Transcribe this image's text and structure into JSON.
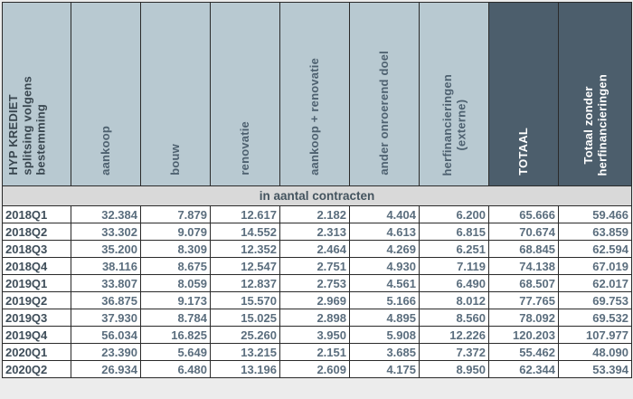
{
  "colors": {
    "header_light_bg": "#b8c9d1",
    "header_dark_bg": "#4c5e6c",
    "header_light_text": "#4e6170",
    "header_dark_text": "#ffffff",
    "subheader_bg": "#d9d9d9",
    "row_label_text": "#3e4d59",
    "number_text": "#5b6e7e",
    "grid_border": "#2a2a2a"
  },
  "chart_data": {
    "type": "table",
    "title": "HYP KREDIET splitsing volgens bestemming",
    "corner_header_lines": [
      "HYP KREDIET",
      "splitsing volgens",
      "bestemming"
    ],
    "subheader": "in aantal contracten",
    "columns": [
      {
        "label_lines": [
          "aankoop"
        ],
        "variant": "light"
      },
      {
        "label_lines": [
          "bouw"
        ],
        "variant": "light"
      },
      {
        "label_lines": [
          "renovatie"
        ],
        "variant": "light"
      },
      {
        "label_lines": [
          "aankoop + renovatie"
        ],
        "variant": "light"
      },
      {
        "label_lines": [
          "ander onroerend doel"
        ],
        "variant": "light"
      },
      {
        "label_lines": [
          "herfinancieringen",
          "(externe)"
        ],
        "variant": "light"
      },
      {
        "label_lines": [
          "TOTAAL"
        ],
        "variant": "dark"
      },
      {
        "label_lines": [
          "Totaal zonder",
          "herfinancieringen"
        ],
        "variant": "dark"
      }
    ],
    "rows": [
      {
        "period": "2018Q1",
        "values": [
          32384,
          7879,
          12617,
          2182,
          4404,
          6200,
          65666,
          59466
        ]
      },
      {
        "period": "2018Q2",
        "values": [
          33302,
          9079,
          14552,
          2313,
          4613,
          6815,
          70674,
          63859
        ]
      },
      {
        "period": "2018Q3",
        "values": [
          35200,
          8309,
          12352,
          2464,
          4269,
          6251,
          68845,
          62594
        ]
      },
      {
        "period": "2018Q4",
        "values": [
          38116,
          8675,
          12547,
          2751,
          4930,
          7119,
          74138,
          67019
        ]
      },
      {
        "period": "2019Q1",
        "values": [
          33807,
          8059,
          12837,
          2753,
          4561,
          6490,
          68507,
          62017
        ]
      },
      {
        "period": "2019Q2",
        "values": [
          36875,
          9173,
          15570,
          2969,
          5166,
          8012,
          77765,
          69753
        ]
      },
      {
        "period": "2019Q3",
        "values": [
          37930,
          8784,
          15025,
          2898,
          4895,
          8560,
          78092,
          69532
        ]
      },
      {
        "period": "2019Q4",
        "values": [
          56034,
          16825,
          25260,
          3950,
          5908,
          12226,
          120203,
          107977
        ]
      },
      {
        "period": "2020Q1",
        "values": [
          23390,
          5649,
          13215,
          2151,
          3685,
          7372,
          55462,
          48090
        ]
      },
      {
        "period": "2020Q2",
        "values": [
          26934,
          6480,
          13196,
          2609,
          4175,
          8950,
          62344,
          53394
        ]
      }
    ],
    "number_format": "thousands-dot"
  }
}
